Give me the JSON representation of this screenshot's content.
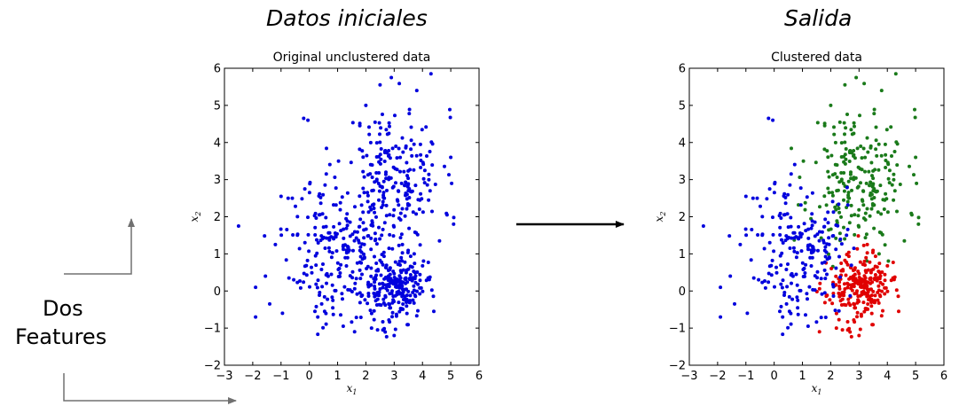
{
  "headings": {
    "left": "Datos iniciales",
    "right": "Salida"
  },
  "side_label": {
    "line1": "Dos",
    "line2": "Features"
  },
  "colors": {
    "blue": "#0000dd",
    "green": "#1a7a1a",
    "red": "#e00000",
    "arrow": "#000000",
    "gray_arrow": "#707070"
  },
  "chart_data": [
    {
      "type": "scatter",
      "title": "Original unclustered data",
      "xlabel": "x1",
      "ylabel": "x2",
      "xlim": [
        -3,
        6
      ],
      "ylim": [
        -2,
        6
      ],
      "xticks": [
        -3,
        -2,
        -1,
        0,
        1,
        2,
        3,
        4,
        5,
        6
      ],
      "yticks": [
        -2,
        -1,
        0,
        1,
        2,
        3,
        4,
        5,
        6
      ],
      "tick_labels_x": [
        "−3",
        "−2",
        "−1",
        "0",
        "1",
        "2",
        "3",
        "4",
        "5",
        "6"
      ],
      "tick_labels_y": [
        "−2",
        "−1",
        "0",
        "1",
        "2",
        "3",
        "4",
        "5",
        "6"
      ],
      "grid": false,
      "series": [
        {
          "color": "#0000dd",
          "points": [
            [
              -2.5,
              1.75
            ],
            [
              -0.2,
              4.65
            ],
            [
              -0.05,
              4.6
            ],
            [
              -1.9,
              -0.7
            ],
            [
              -0.95,
              -0.6
            ],
            [
              1.6,
              -1.1
            ],
            [
              4.3,
              5.85
            ],
            [
              2.9,
              5.75
            ],
            [
              5.1,
              1.8
            ],
            [
              5.0,
              3.6
            ],
            [
              -1.55,
              0.4
            ],
            [
              -0.6,
              2.5
            ],
            [
              -1.2,
              1.25
            ],
            [
              0.2,
              -0.55
            ],
            [
              1.2,
              -0.95
            ],
            [
              3.0,
              -1.2
            ],
            [
              2.6,
              -1.05
            ],
            [
              4.6,
              1.35
            ],
            [
              3.8,
              5.4
            ],
            [
              2.5,
              5.55
            ],
            [
              0.6,
              3.15
            ],
            [
              -1.0,
              2.55
            ],
            [
              -0.75,
              2.5
            ],
            [
              -1.9,
              0.1
            ],
            [
              -1.4,
              -0.35
            ],
            [
              0.3,
              -0.7
            ],
            [
              4.2,
              0.35
            ],
            [
              4.4,
              -0.55
            ],
            [
              2.2,
              -1.0
            ],
            [
              2.0,
              5.0
            ]
          ]
        },
        {
          "color": "#0000dd",
          "cluster": "upper",
          "center": [
            3.0,
            3.0
          ],
          "spread": [
            0.85,
            0.95
          ],
          "count": 230,
          "seed": 11
        },
        {
          "color": "#0000dd",
          "cluster": "lower",
          "center": [
            3.0,
            0.1
          ],
          "spread": [
            0.55,
            0.45
          ],
          "count": 240,
          "seed": 23
        },
        {
          "color": "#0000dd",
          "cluster": "left",
          "center": [
            0.9,
            1.1
          ],
          "spread": [
            0.8,
            0.95
          ],
          "count": 210,
          "seed": 37
        }
      ]
    },
    {
      "type": "scatter",
      "title": "Clustered data",
      "xlabel": "x1",
      "ylabel": "x2",
      "xlim": [
        -3,
        6
      ],
      "ylim": [
        -2,
        6
      ],
      "xticks": [
        -3,
        -2,
        -1,
        0,
        1,
        2,
        3,
        4,
        5,
        6
      ],
      "yticks": [
        -2,
        -1,
        0,
        1,
        2,
        3,
        4,
        5,
        6
      ],
      "tick_labels_x": [
        "−3",
        "−2",
        "−1",
        "0",
        "1",
        "2",
        "3",
        "4",
        "5",
        "6"
      ],
      "tick_labels_y": [
        "−2",
        "−1",
        "0",
        "1",
        "2",
        "3",
        "4",
        "5",
        "6"
      ],
      "grid": false,
      "series": [
        {
          "color": "#0000dd",
          "points": [
            [
              -2.5,
              1.75
            ],
            [
              -0.2,
              4.65
            ],
            [
              -0.05,
              4.6
            ],
            [
              -1.9,
              -0.7
            ],
            [
              -0.95,
              -0.6
            ],
            [
              -1.55,
              0.4
            ],
            [
              -0.6,
              2.5
            ],
            [
              -1.2,
              1.25
            ],
            [
              0.2,
              -0.55
            ],
            [
              1.2,
              -0.95
            ],
            [
              0.6,
              3.15
            ],
            [
              -1.0,
              2.55
            ],
            [
              -0.75,
              2.5
            ],
            [
              -1.9,
              0.1
            ],
            [
              -1.4,
              -0.35
            ],
            [
              0.3,
              -0.7
            ]
          ]
        },
        {
          "color": "#1a7a1a",
          "points": [
            [
              4.3,
              5.85
            ],
            [
              2.9,
              5.75
            ],
            [
              5.1,
              1.8
            ],
            [
              5.0,
              3.6
            ],
            [
              4.6,
              1.35
            ],
            [
              3.8,
              5.4
            ],
            [
              2.5,
              5.55
            ],
            [
              2.0,
              5.0
            ]
          ]
        },
        {
          "color": "#e00000",
          "points": [
            [
              1.6,
              -1.1
            ],
            [
              3.0,
              -1.2
            ],
            [
              2.6,
              -1.05
            ],
            [
              4.2,
              0.35
            ],
            [
              4.4,
              -0.55
            ],
            [
              2.2,
              -1.0
            ]
          ]
        },
        {
          "color": "#1a7a1a",
          "cluster": "upper",
          "center": [
            3.0,
            3.0
          ],
          "spread": [
            0.85,
            0.95
          ],
          "count": 230,
          "seed": 11
        },
        {
          "color": "#e00000",
          "cluster": "lower",
          "center": [
            3.0,
            0.1
          ],
          "spread": [
            0.55,
            0.45
          ],
          "count": 240,
          "seed": 23
        },
        {
          "color": "#0000dd",
          "cluster": "left",
          "center": [
            0.9,
            1.1
          ],
          "spread": [
            0.8,
            0.95
          ],
          "count": 210,
          "seed": 37
        }
      ]
    }
  ]
}
